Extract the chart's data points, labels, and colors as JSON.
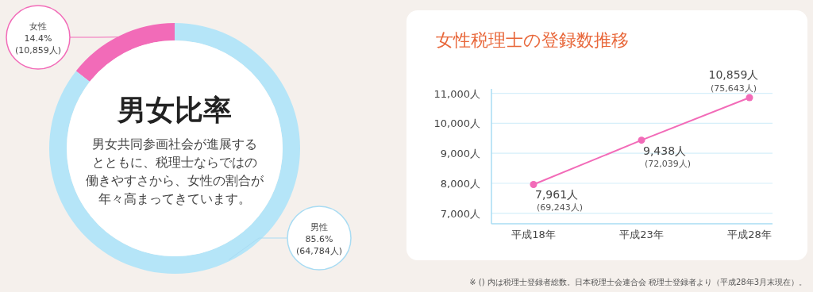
{
  "chart_data": [
    {
      "type": "donut",
      "title": "男女比率",
      "categories": [
        "女性",
        "男性"
      ],
      "values": [
        14.4,
        85.6
      ],
      "colors": [
        "#f26bb8",
        "#b5e5f8"
      ],
      "value_labels": [
        "14.4%",
        "85.6%"
      ],
      "annotations": [
        "(10,859人)",
        "(64,784人)",
        "男女共同参画社会が進展する",
        "とともに、税理士ならではの",
        "働きやすさから、女性の割合が",
        "年々高まってきています。"
      ]
    },
    {
      "type": "line",
      "title": "女性税理士の登録数推移",
      "categories": [
        "平成18年",
        "平成23年",
        "平成28年"
      ],
      "series": [
        {
          "color": "#f26bb8",
          "values": [
            7961,
            9438,
            10859
          ],
          "value_labels": [
            "7,961人",
            "9,438人",
            "10,859人"
          ]
        }
      ],
      "ylim": [
        6650,
        11150
      ],
      "yticks": [
        {
          "value": 7000,
          "label": "7,000人"
        },
        {
          "value": 8000,
          "label": "8,000人"
        },
        {
          "value": 9000,
          "label": "9,000人"
        },
        {
          "value": 10000,
          "label": "10,000人"
        },
        {
          "value": 11000,
          "label": "11,000人"
        }
      ],
      "grid": "y",
      "marker": "circle",
      "line_style": "solid",
      "annotations": [
        {
          "text": "(69,243人)",
          "x": "平成18年",
          "y": 7961
        },
        {
          "text": "(72,039人)",
          "x": "平成23年",
          "y": 9438
        },
        {
          "text": "(75,643人)",
          "x": "平成28年",
          "y": 10859
        },
        "※ () 内は税理士登録者総数。日本税理士会連合会 税理士登録者より（平成28年3月末現在）。"
      ]
    }
  ]
}
